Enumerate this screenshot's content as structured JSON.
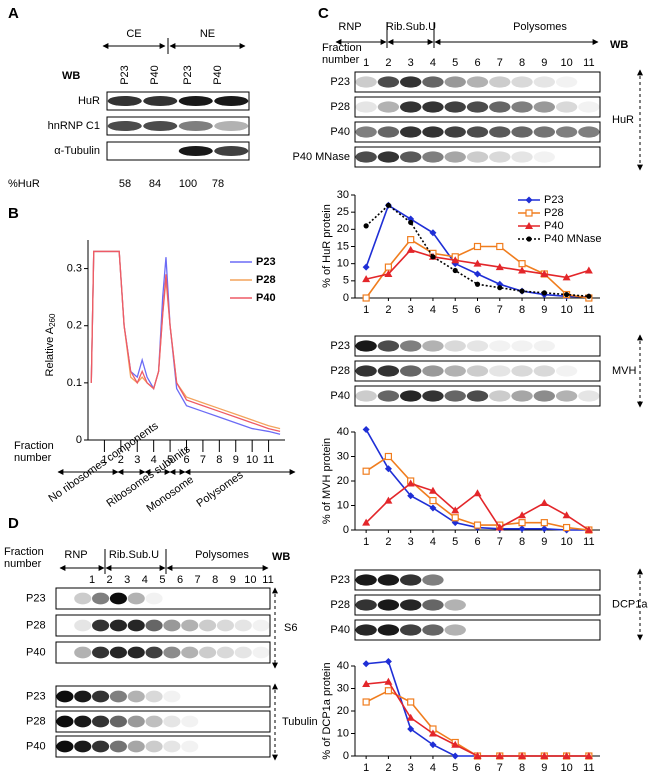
{
  "panels": {
    "A": {
      "label": "A",
      "groups": [
        "CE",
        "NE"
      ],
      "wb": "WB",
      "lanes": [
        "P23",
        "P40",
        "P23",
        "P40"
      ],
      "rows": [
        "HuR",
        "hnRNP C1",
        "α-Tubulin"
      ],
      "pct_label": "%HuR",
      "pct_values": [
        58,
        84,
        100,
        78
      ]
    },
    "B": {
      "label": "B"
    },
    "C": {
      "label": "C",
      "fraction_label": "Fraction number",
      "groups": [
        "RNP",
        "Rib.Sub.U",
        "Polysomes"
      ],
      "wb": "WB",
      "fractions": [
        1,
        2,
        3,
        4,
        5,
        6,
        7,
        8,
        9,
        10,
        11
      ],
      "blots": [
        {
          "target": "HuR",
          "rows": [
            "P23",
            "P28",
            "P40",
            "P40 MNase"
          ]
        },
        {
          "target": "MVH",
          "rows": [
            "P23",
            "P28",
            "P40"
          ]
        },
        {
          "target": "DCP1a",
          "rows": [
            "P23",
            "P28",
            "P40"
          ]
        }
      ]
    },
    "D": {
      "label": "D",
      "fraction_label": "Fraction number",
      "groups": [
        "RNP",
        "Rib.Sub.U",
        "Polysomes"
      ],
      "wb": "WB",
      "fractions": [
        1,
        2,
        3,
        4,
        5,
        6,
        7,
        8,
        9,
        10,
        11
      ],
      "blots": [
        {
          "target": "S6",
          "rows": [
            "P23",
            "P28",
            "P40"
          ]
        },
        {
          "target": "Tubulin",
          "rows": [
            "P23",
            "P28",
            "P40"
          ]
        }
      ]
    }
  },
  "chart_data": [
    {
      "type": "line",
      "y_label": "Relative A",
      "y_label_sub": "260",
      "x_label": "Fraction number",
      "x": [
        0.2,
        0.35,
        0.5,
        1.0,
        1.5,
        1.9,
        2.2,
        2.6,
        3.0,
        3.3,
        3.6,
        4.0,
        4.3,
        4.55,
        4.75,
        5.0,
        5.4,
        6.0,
        7.0,
        8.0,
        9.0,
        10.0,
        11.0,
        11.7
      ],
      "xlim": [
        0,
        12
      ],
      "xticks": [
        1,
        2,
        3,
        4,
        5,
        6,
        7,
        8,
        9,
        10,
        11
      ],
      "ylim": [
        0,
        0.35
      ],
      "yticks": [
        0,
        0.1,
        0.2,
        0.3
      ],
      "annotations": [
        "No ribosomes components",
        "Ribosomes subunits",
        "Monosome",
        "Polysomes"
      ],
      "series": [
        {
          "name": "P23",
          "color": "#6b6bf5",
          "values": [
            0.1,
            0.33,
            0.33,
            0.33,
            0.33,
            0.33,
            0.2,
            0.12,
            0.11,
            0.14,
            0.11,
            0.09,
            0.12,
            0.25,
            0.32,
            0.2,
            0.09,
            0.06,
            0.05,
            0.04,
            0.03,
            0.02,
            0.015,
            0.01
          ]
        },
        {
          "name": "P28",
          "color": "#f3a35c",
          "values": [
            0.1,
            0.33,
            0.33,
            0.33,
            0.33,
            0.33,
            0.2,
            0.11,
            0.1,
            0.11,
            0.1,
            0.09,
            0.12,
            0.22,
            0.28,
            0.2,
            0.1,
            0.075,
            0.065,
            0.055,
            0.045,
            0.035,
            0.025,
            0.02
          ]
        },
        {
          "name": "P40",
          "color": "#ee5a66",
          "values": [
            0.1,
            0.33,
            0.33,
            0.33,
            0.33,
            0.33,
            0.2,
            0.12,
            0.1,
            0.12,
            0.1,
            0.09,
            0.12,
            0.22,
            0.29,
            0.2,
            0.1,
            0.07,
            0.06,
            0.05,
            0.04,
            0.03,
            0.02,
            0.015
          ]
        }
      ]
    },
    {
      "type": "line",
      "y_label": "% of HuR protein",
      "x": [
        1,
        2,
        3,
        4,
        5,
        6,
        7,
        8,
        9,
        10,
        11
      ],
      "xlim": [
        0.5,
        11.5
      ],
      "xticks": [
        1,
        2,
        3,
        4,
        5,
        6,
        7,
        8,
        9,
        10,
        11
      ],
      "ylim": [
        0,
        30
      ],
      "yticks": [
        0,
        5,
        10,
        15,
        20,
        25,
        30
      ],
      "series": [
        {
          "name": "P23",
          "color": "#1f2fd6",
          "marker": "diamond",
          "values": [
            9,
            27,
            23,
            19,
            10,
            7,
            4,
            2,
            1,
            0.5,
            0.3
          ]
        },
        {
          "name": "P28",
          "color": "#f07d1e",
          "marker": "square-open",
          "values": [
            0,
            9,
            17,
            13,
            12,
            15,
            15,
            10,
            7,
            1,
            0
          ]
        },
        {
          "name": "P40",
          "color": "#e3262a",
          "marker": "triangle",
          "values": [
            5.5,
            7,
            14,
            12,
            11,
            10,
            9,
            8,
            7,
            6,
            8
          ]
        },
        {
          "name": "P40 MNase",
          "color": "#000000",
          "marker": "circle",
          "dash": true,
          "values": [
            21,
            27,
            22,
            12,
            8,
            4,
            3,
            2,
            1.5,
            1,
            0.5
          ]
        }
      ]
    },
    {
      "type": "line",
      "y_label": "% of MVH protein",
      "x": [
        1,
        2,
        3,
        4,
        5,
        6,
        7,
        8,
        9,
        10,
        11
      ],
      "xlim": [
        0.5,
        11.5
      ],
      "xticks": [
        1,
        2,
        3,
        4,
        5,
        6,
        7,
        8,
        9,
        10,
        11
      ],
      "ylim": [
        0,
        40
      ],
      "yticks": [
        0,
        10,
        20,
        30,
        40
      ],
      "series": [
        {
          "color": "#1f2fd6",
          "marker": "diamond",
          "values": [
            41,
            25,
            14,
            9,
            3,
            1,
            0.5,
            0.5,
            0.5,
            0,
            0
          ]
        },
        {
          "color": "#f07d1e",
          "marker": "square-open",
          "values": [
            24,
            30,
            20,
            12,
            5,
            2,
            2,
            3,
            3,
            1,
            0
          ]
        },
        {
          "color": "#e3262a",
          "marker": "triangle",
          "values": [
            3,
            12,
            19,
            16,
            8,
            15,
            1,
            6,
            11,
            6,
            0
          ]
        }
      ]
    },
    {
      "type": "line",
      "y_label": "% of DCP1a  protein",
      "x": [
        1,
        2,
        3,
        4,
        5,
        6,
        7,
        8,
        9,
        10,
        11
      ],
      "xlim": [
        0.5,
        11.5
      ],
      "xticks": [
        1,
        2,
        3,
        4,
        5,
        6,
        7,
        8,
        9,
        10,
        11
      ],
      "ylim": [
        0,
        40
      ],
      "yticks": [
        0,
        10,
        20,
        30,
        40
      ],
      "series": [
        {
          "color": "#1f2fd6",
          "marker": "diamond",
          "values": [
            41,
            42,
            12,
            5,
            0,
            0,
            0,
            0,
            0,
            0,
            0
          ]
        },
        {
          "color": "#f07d1e",
          "marker": "square-open",
          "values": [
            24,
            29,
            24,
            12,
            6,
            0,
            0,
            0,
            0,
            0,
            0
          ]
        },
        {
          "color": "#e3262a",
          "marker": "triangle",
          "values": [
            32,
            33,
            17,
            10,
            5,
            0,
            0,
            0,
            0,
            0,
            0
          ]
        }
      ]
    }
  ]
}
